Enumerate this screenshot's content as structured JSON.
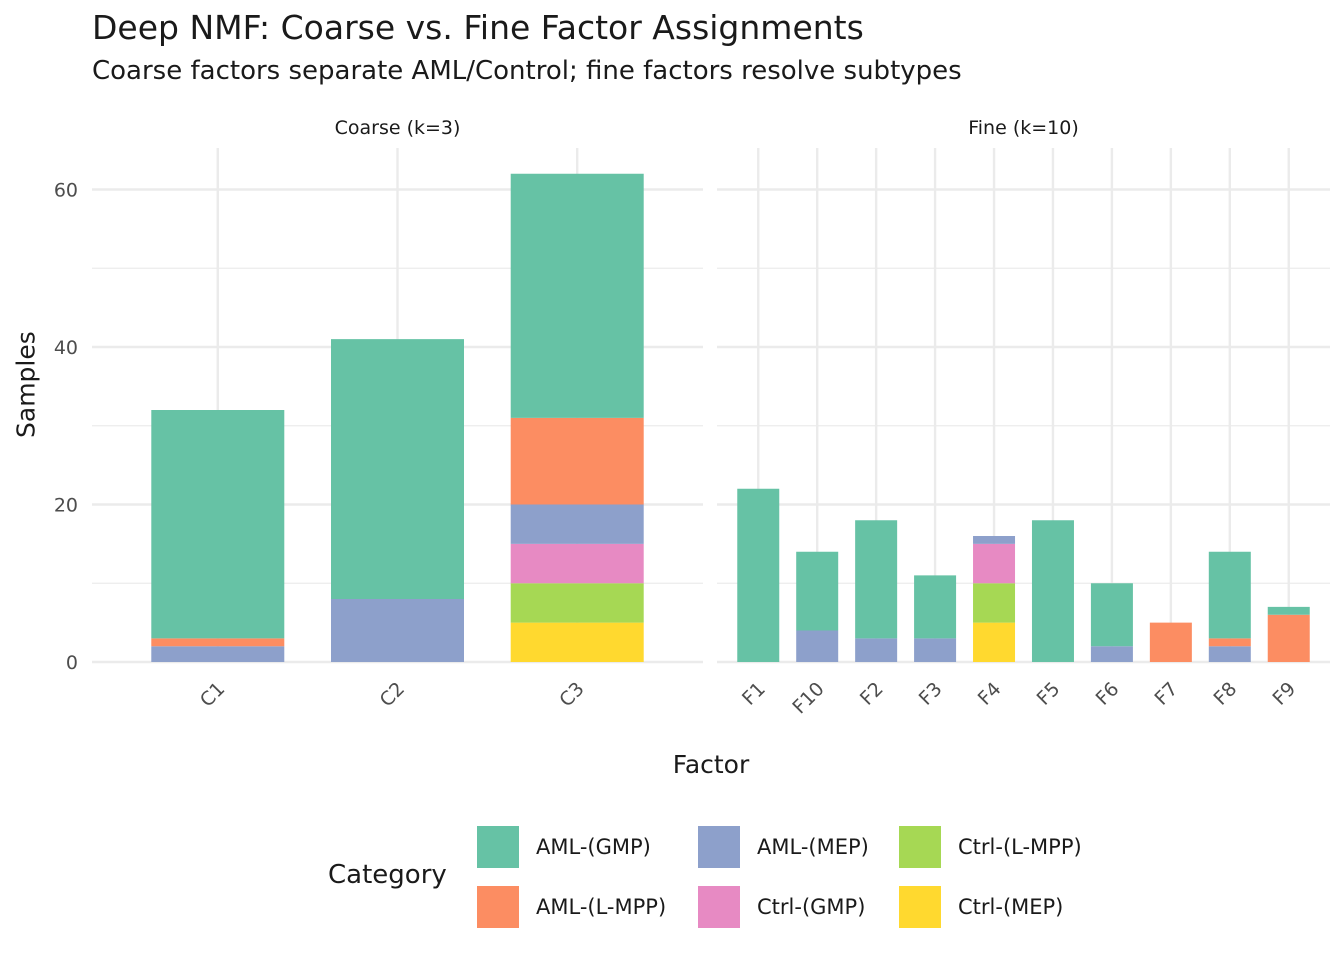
{
  "chart_data": {
    "type": "bar",
    "stacked": true,
    "title": "Deep NMF: Coarse vs. Fine Factor Assignments",
    "subtitle": "Coarse factors separate AML/Control; fine factors resolve subtypes",
    "xlabel": "Factor",
    "ylabel": "Samples",
    "ylim": [
      0,
      65
    ],
    "yticks": [
      0,
      20,
      40,
      60
    ],
    "grid": true,
    "legend_title": "Category",
    "legend_position": "bottom",
    "categories_order": [
      "AML-(GMP)",
      "AML-(L-MPP)",
      "AML-(MEP)",
      "Ctrl-(GMP)",
      "Ctrl-(L-MPP)",
      "Ctrl-(MEP)"
    ],
    "colors": {
      "AML-(GMP)": "#66c2a5",
      "AML-(L-MPP)": "#fc8d62",
      "AML-(MEP)": "#8da0cb",
      "Ctrl-(GMP)": "#e78ac3",
      "Ctrl-(L-MPP)": "#a6d854",
      "Ctrl-(MEP)": "#ffd92f"
    },
    "panels": [
      {
        "name": "Coarse (k=3)",
        "factors": [
          "C1",
          "C2",
          "C3"
        ],
        "series": [
          {
            "name": "AML-(GMP)",
            "values": [
              29,
              33,
              31
            ]
          },
          {
            "name": "AML-(L-MPP)",
            "values": [
              1,
              0,
              11
            ]
          },
          {
            "name": "AML-(MEP)",
            "values": [
              2,
              8,
              5
            ]
          },
          {
            "name": "Ctrl-(GMP)",
            "values": [
              0,
              0,
              5
            ]
          },
          {
            "name": "Ctrl-(L-MPP)",
            "values": [
              0,
              0,
              5
            ]
          },
          {
            "name": "Ctrl-(MEP)",
            "values": [
              0,
              0,
              5
            ]
          }
        ]
      },
      {
        "name": "Fine (k=10)",
        "factors": [
          "F1",
          "F10",
          "F2",
          "F3",
          "F4",
          "F5",
          "F6",
          "F7",
          "F8",
          "F9"
        ],
        "series": [
          {
            "name": "AML-(GMP)",
            "values": [
              22,
              10,
              15,
              8,
              0,
              18,
              8,
              0,
              11,
              1
            ]
          },
          {
            "name": "AML-(L-MPP)",
            "values": [
              0,
              0,
              0,
              0,
              0,
              0,
              0,
              5,
              1,
              6
            ]
          },
          {
            "name": "AML-(MEP)",
            "values": [
              0,
              4,
              3,
              3,
              1,
              0,
              2,
              0,
              2,
              0
            ]
          },
          {
            "name": "Ctrl-(GMP)",
            "values": [
              0,
              0,
              0,
              0,
              5,
              0,
              0,
              0,
              0,
              0
            ]
          },
          {
            "name": "Ctrl-(L-MPP)",
            "values": [
              0,
              0,
              0,
              0,
              5,
              0,
              0,
              0,
              0,
              0
            ]
          },
          {
            "name": "Ctrl-(MEP)",
            "values": [
              0,
              0,
              0,
              0,
              5,
              0,
              0,
              0,
              0,
              0
            ]
          }
        ]
      }
    ],
    "legend_items": [
      "AML-(GMP)",
      "AML-(MEP)",
      "Ctrl-(L-MPP)",
      "AML-(L-MPP)",
      "Ctrl-(GMP)",
      "Ctrl-(MEP)"
    ]
  }
}
